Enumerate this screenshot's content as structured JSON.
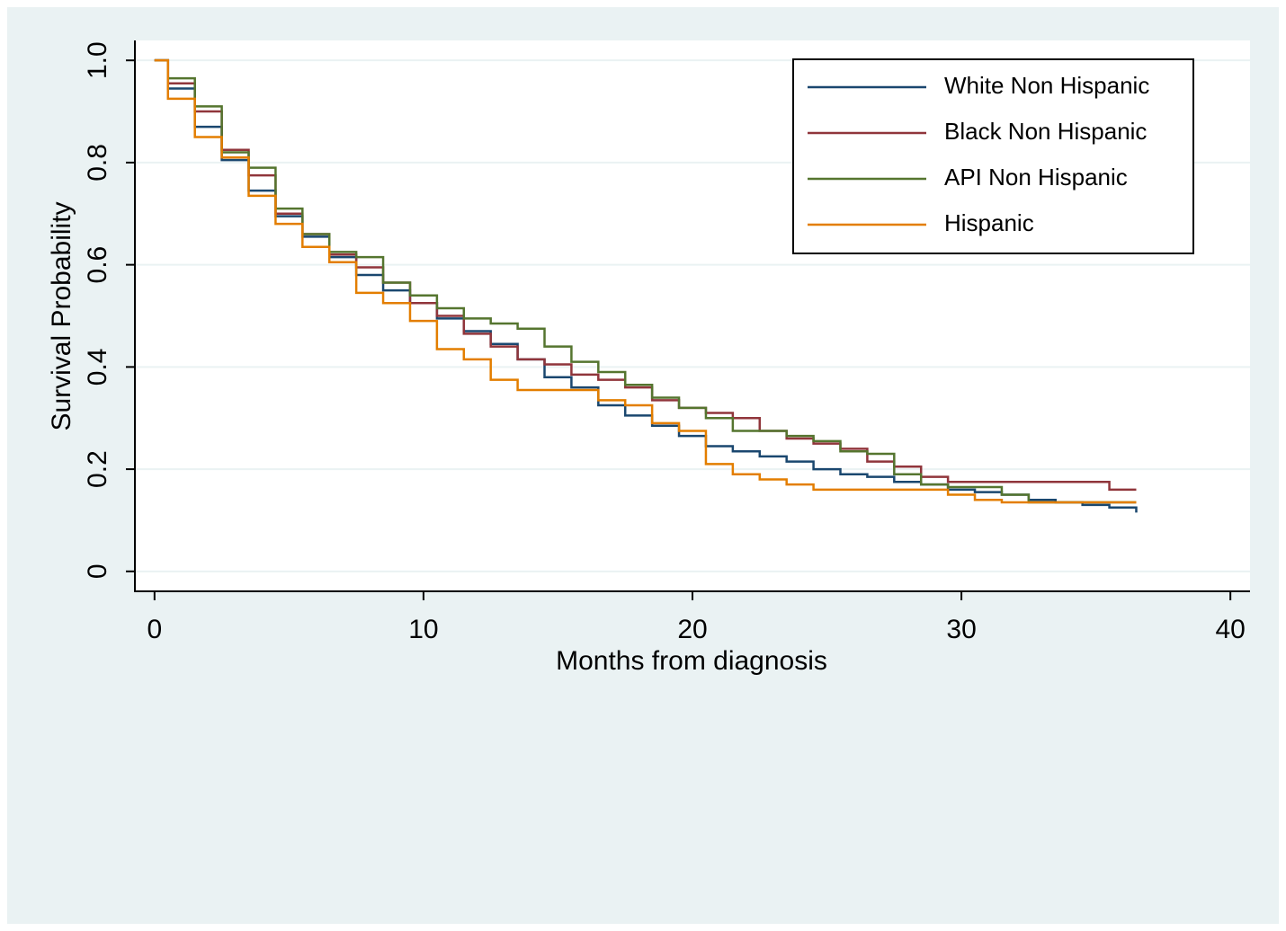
{
  "chart_data": {
    "type": "step",
    "x_label": "Months from diagnosis",
    "y_label": "Survival Probability",
    "x": [
      0,
      0.5,
      1.5,
      2.5,
      3.5,
      4.5,
      5.5,
      6.5,
      7.5,
      8.5,
      9.5,
      10.5,
      11.5,
      12.5,
      13.5,
      14.5,
      15.5,
      16.5,
      17.5,
      18.5,
      19.5,
      20.5,
      21.5,
      22.5,
      23.5,
      24.5,
      25.5,
      26.5,
      27.5,
      28.5,
      29.5,
      30.5,
      31.5,
      32.5,
      33.5,
      34.5,
      35.5,
      36.5
    ],
    "series": [
      {
        "name": "White Non Hispanic",
        "color": "#1a476f",
        "values": [
          1,
          0.945,
          0.87,
          0.805,
          0.745,
          0.695,
          0.655,
          0.615,
          0.58,
          0.55,
          0.525,
          0.495,
          0.47,
          0.445,
          0.415,
          0.38,
          0.36,
          0.325,
          0.305,
          0.285,
          0.265,
          0.245,
          0.235,
          0.225,
          0.215,
          0.2,
          0.19,
          0.185,
          0.175,
          0.17,
          0.16,
          0.155,
          0.15,
          0.14,
          0.135,
          0.13,
          0.125,
          0.115
        ]
      },
      {
        "name": "Black Non Hispanic",
        "color": "#90353b",
        "values": [
          1,
          0.955,
          0.9,
          0.825,
          0.775,
          0.7,
          0.66,
          0.62,
          0.595,
          0.565,
          0.525,
          0.5,
          0.465,
          0.44,
          0.415,
          0.405,
          0.385,
          0.375,
          0.36,
          0.335,
          0.32,
          0.31,
          0.3,
          0.275,
          0.26,
          0.25,
          0.24,
          0.215,
          0.205,
          0.185,
          0.175,
          0.175,
          0.175,
          0.175,
          0.175,
          0.175,
          0.16,
          0.16
        ]
      },
      {
        "name": "API Non Hispanic",
        "color": "#55752f",
        "values": [
          1,
          0.965,
          0.91,
          0.82,
          0.79,
          0.71,
          0.66,
          0.625,
          0.615,
          0.565,
          0.54,
          0.515,
          0.495,
          0.485,
          0.475,
          0.44,
          0.41,
          0.39,
          0.365,
          0.34,
          0.32,
          0.3,
          0.275,
          0.275,
          0.265,
          0.255,
          0.235,
          0.23,
          0.19,
          0.17,
          0.165,
          0.165,
          0.15,
          0.135,
          0.135,
          0.135,
          0.135,
          0.135
        ]
      },
      {
        "name": "Hispanic",
        "color": "#e37e00",
        "values": [
          1,
          0.925,
          0.85,
          0.81,
          0.735,
          0.68,
          0.635,
          0.605,
          0.545,
          0.525,
          0.49,
          0.435,
          0.415,
          0.375,
          0.355,
          0.355,
          0.355,
          0.335,
          0.325,
          0.29,
          0.275,
          0.21,
          0.19,
          0.18,
          0.17,
          0.16,
          0.16,
          0.16,
          0.16,
          0.16,
          0.15,
          0.14,
          0.135,
          0.135,
          0.135,
          0.135,
          0.135,
          0.135
        ]
      }
    ],
    "xlim": [
      -0.73,
      40.73
    ],
    "ylim": [
      -0.039,
      1.039
    ],
    "xticks": [
      0,
      10,
      20,
      30,
      40
    ],
    "yticks": [
      0,
      0.2,
      0.4,
      0.6,
      0.8,
      {
        "value": 1,
        "label": "1.0"
      }
    ],
    "grid": true,
    "legend_position": "top-right"
  }
}
